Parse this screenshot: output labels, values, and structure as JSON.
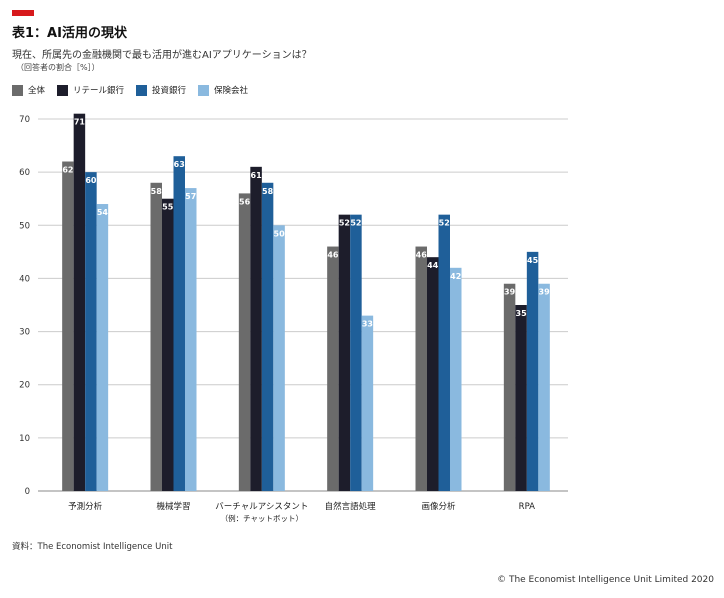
{
  "header": {
    "title": "表1：AI活用の現状",
    "subtitle": "現在、所属先の金融機関で最も活用が進むAIアプリケーションは？",
    "unit_note": "（回答者の割合［%］）"
  },
  "footer": {
    "source": "資料：The Economist Intelligence Unit",
    "copyright": "© The Economist Intelligence Unit Limited 2020"
  },
  "colors": {
    "accent": "#d7191c",
    "grid": "#cccccc",
    "axis": "#888888"
  },
  "chart_data": {
    "type": "bar",
    "categories": [
      [
        "予測分析"
      ],
      [
        "機械学習"
      ],
      [
        "バーチャルアシスタント",
        "（例：チャットボット）"
      ],
      [
        "自然言語処理"
      ],
      [
        "画像分析"
      ],
      [
        "RPA"
      ]
    ],
    "series": [
      {
        "name": "全体",
        "color": "#6b6b6b",
        "values": [
          62,
          58,
          56,
          46,
          46,
          39
        ]
      },
      {
        "name": "リテール銀行",
        "color": "#1d1d2b",
        "values": [
          71,
          55,
          61,
          52,
          44,
          35
        ]
      },
      {
        "name": "投資銀行",
        "color": "#1f5f99",
        "values": [
          60,
          63,
          58,
          52,
          52,
          45
        ]
      },
      {
        "name": "保険会社",
        "color": "#8ab9df",
        "values": [
          54,
          57,
          50,
          33,
          42,
          39
        ]
      }
    ],
    "y_ticks": [
      0,
      10,
      20,
      30,
      40,
      50,
      60,
      70
    ],
    "ylim": [
      0,
      70
    ],
    "grid": true,
    "legend": "top-left",
    "data_labels": true
  }
}
